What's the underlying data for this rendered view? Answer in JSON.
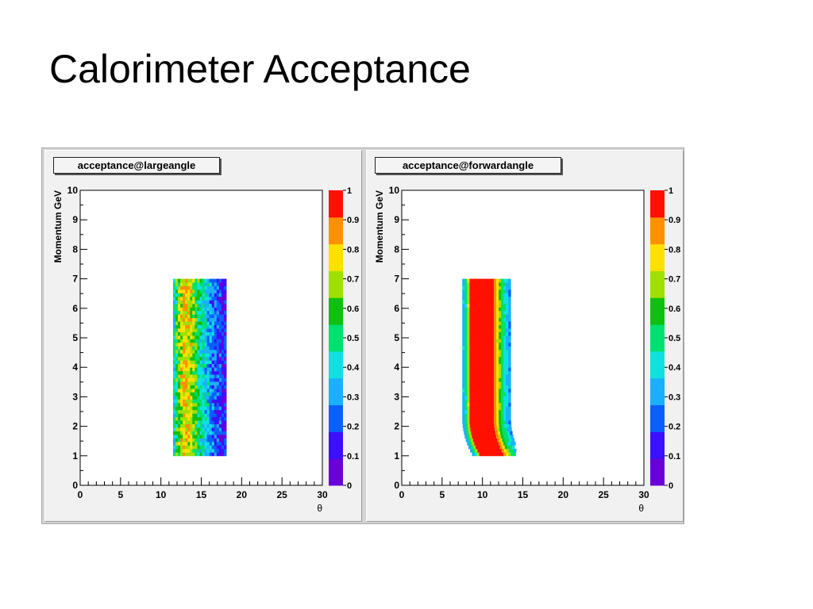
{
  "slide": {
    "title": "Calorimeter Acceptance"
  },
  "chart_data": [
    {
      "type": "heatmap",
      "title": "acceptance@largeangle",
      "xlabel": "θ",
      "ylabel": "Momentum GeV",
      "xlim": [
        0,
        30
      ],
      "ylim": [
        0,
        10
      ],
      "x_ticks": [
        "0",
        "5",
        "10",
        "15",
        "20",
        "25",
        "30"
      ],
      "y_ticks": [
        "0",
        "1",
        "2",
        "3",
        "4",
        "5",
        "6",
        "7",
        "8",
        "9",
        "10"
      ],
      "colorbar": {
        "min": 0,
        "max": 1,
        "ticks": [
          "0",
          "0.1",
          "0.2",
          "0.3",
          "0.4",
          "0.5",
          "0.6",
          "0.7",
          "0.8",
          "0.9",
          "1"
        ]
      },
      "filled_region": {
        "theta_min": 11.5,
        "theta_max": 18.0,
        "momentum_min": 1.0,
        "momentum_max": 7.0
      },
      "profile": {
        "theta": [
          11.5,
          12.0,
          12.5,
          13.0,
          13.5,
          14.0,
          14.5,
          15.0,
          15.5,
          16.0,
          16.5,
          17.0,
          17.5,
          18.0
        ],
        "acceptance": [
          0.4,
          0.62,
          0.78,
          0.88,
          0.82,
          0.72,
          0.6,
          0.5,
          0.42,
          0.35,
          0.29,
          0.24,
          0.18,
          0.12
        ]
      },
      "grid": false,
      "legend": "none"
    },
    {
      "type": "heatmap",
      "title": "acceptance@forwardangle",
      "xlabel": "θ",
      "ylabel": "Momentum GeV",
      "xlim": [
        0,
        30
      ],
      "ylim": [
        0,
        10
      ],
      "x_ticks": [
        "0",
        "5",
        "10",
        "15",
        "20",
        "25",
        "30"
      ],
      "y_ticks": [
        "0",
        "1",
        "2",
        "3",
        "4",
        "5",
        "6",
        "7",
        "8",
        "9",
        "10"
      ],
      "colorbar": {
        "min": 0,
        "max": 1,
        "ticks": [
          "0",
          "0.1",
          "0.2",
          "0.3",
          "0.4",
          "0.5",
          "0.6",
          "0.7",
          "0.8",
          "0.9",
          "1"
        ]
      },
      "filled_region": {
        "theta_min": 7.5,
        "theta_max": 13.5,
        "momentum_min": 1.0,
        "momentum_max": 7.0
      },
      "profile": {
        "theta": [
          7.5,
          8.0,
          8.5,
          9.0,
          9.5,
          10.0,
          10.5,
          11.0,
          11.5,
          12.0,
          12.5,
          13.0,
          13.5
        ],
        "acceptance": [
          0.3,
          0.55,
          1.0,
          1.0,
          1.0,
          1.0,
          1.0,
          1.0,
          1.0,
          0.75,
          0.55,
          0.42,
          0.28
        ]
      },
      "grid": false,
      "legend": "none"
    }
  ]
}
